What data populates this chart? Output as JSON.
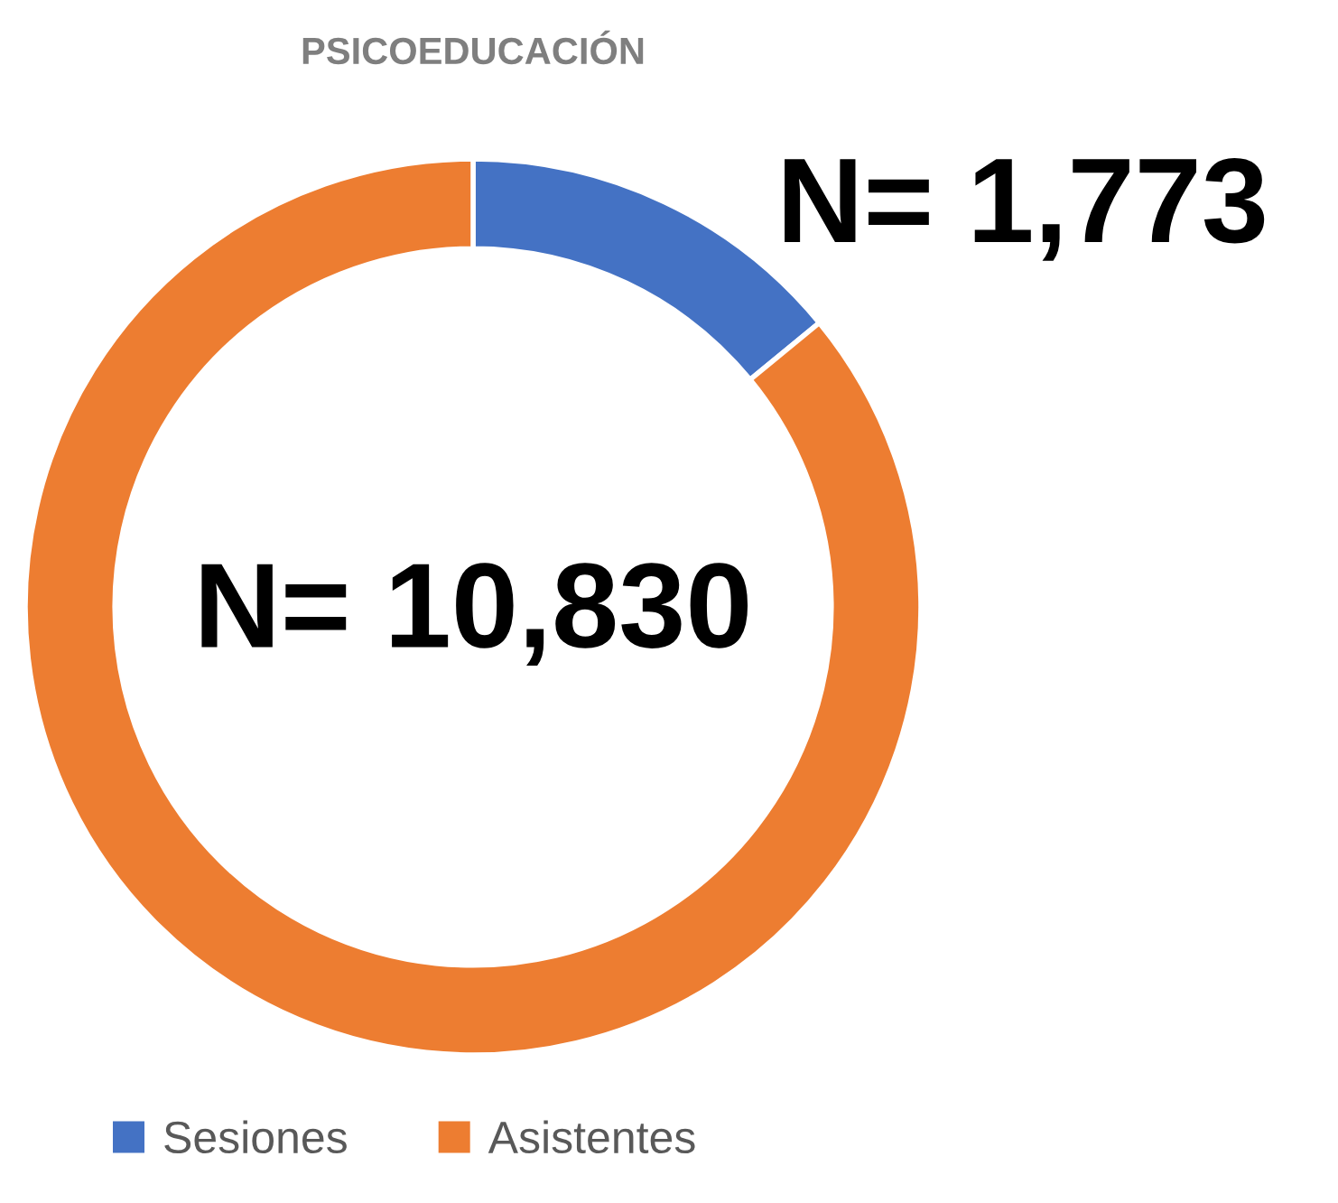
{
  "chart_data": {
    "type": "donut",
    "title": "PSICOEDUCACIÓN",
    "categories": [
      "Sesiones",
      "Asistentes"
    ],
    "values": [
      1773,
      10830
    ],
    "colors": [
      "#4472c4",
      "#ed7d31"
    ],
    "value_labels": [
      "N= 1,773",
      "N= 10,830"
    ],
    "legend": "bottom left"
  }
}
